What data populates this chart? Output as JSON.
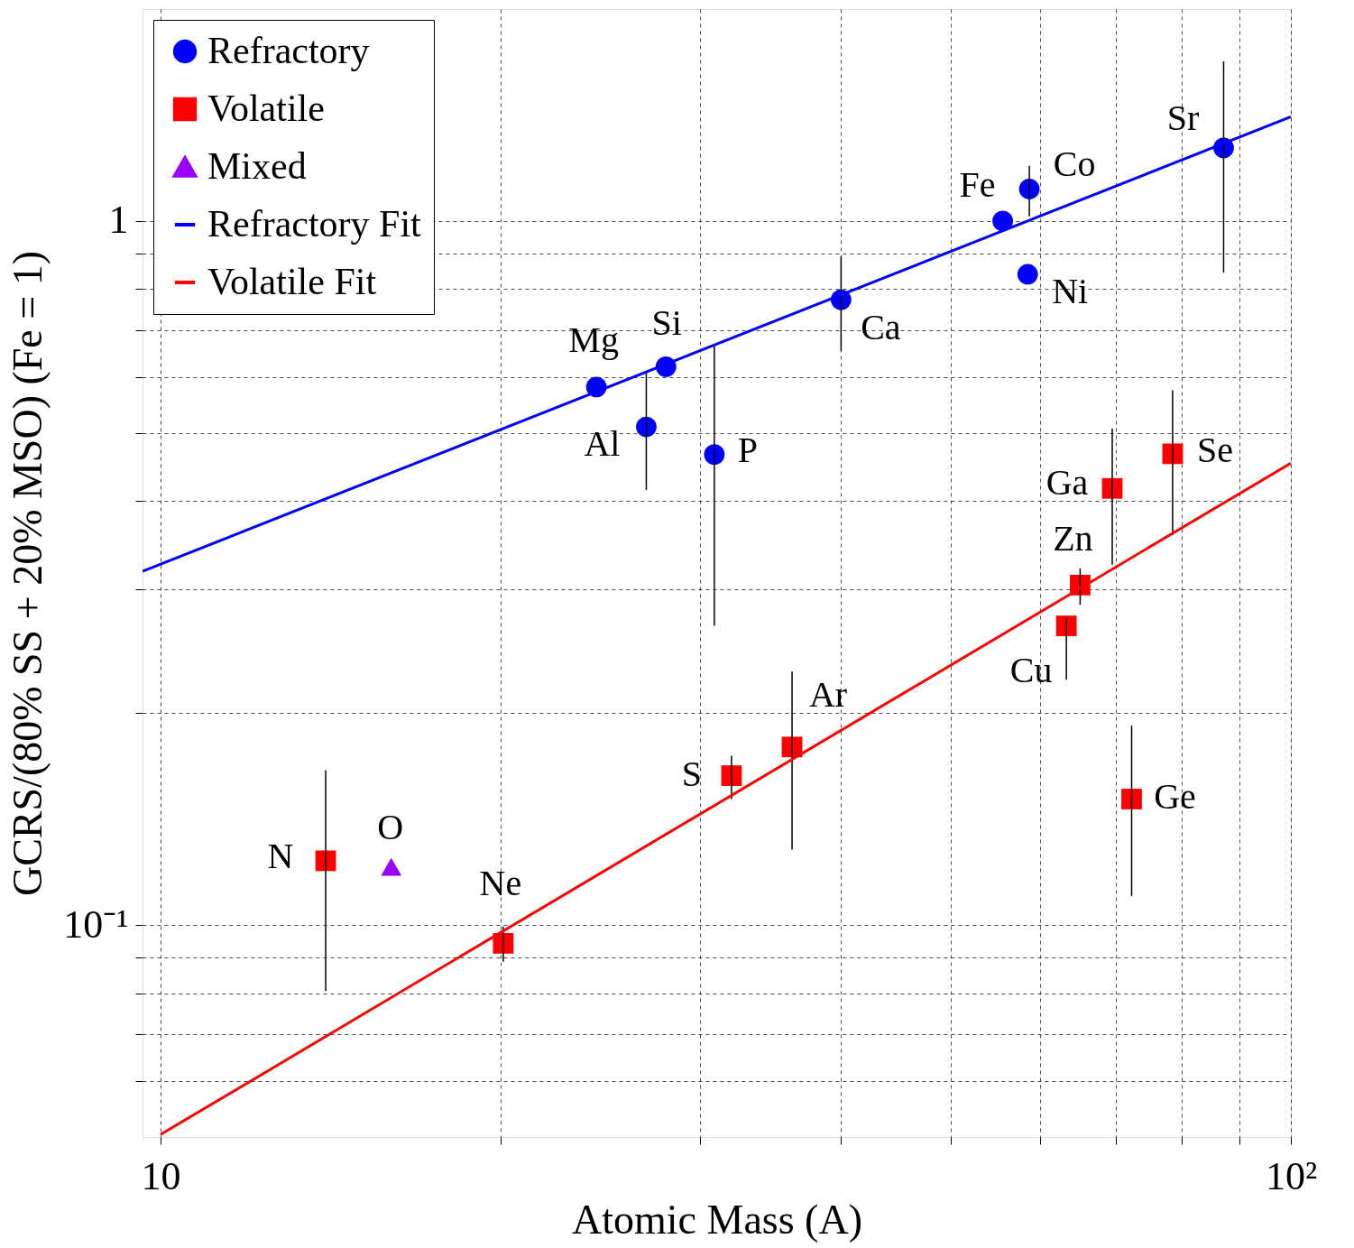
{
  "chart_data": {
    "type": "scatter",
    "xlabel": "Atomic Mass (A)",
    "ylabel": "GCRS/(80% SS + 20% MSO) (Fe = 1)",
    "log": "xy",
    "xlim": [
      9.64,
      100
    ],
    "ylim": [
      0.05,
      2
    ],
    "xticks": [
      10,
      {
        "value": 20,
        "label": null
      },
      {
        "value": 30,
        "label": null
      },
      {
        "value": 40,
        "label": null
      },
      {
        "value": 50,
        "label": null
      },
      {
        "value": 60,
        "label": null
      },
      {
        "value": 70,
        "label": null
      },
      {
        "value": 80,
        "label": null
      },
      {
        "value": 90,
        "label": null
      },
      {
        "value": 100,
        "label": "10²"
      }
    ],
    "yticks": [
      {
        "value": 0.06,
        "label": null
      },
      {
        "value": 0.07,
        "label": null
      },
      {
        "value": 0.08,
        "label": null
      },
      {
        "value": 0.09,
        "label": null
      },
      {
        "value": 0.1,
        "label": "10⁻¹"
      },
      {
        "value": 0.2,
        "label": null
      },
      {
        "value": 0.3,
        "label": null
      },
      {
        "value": 0.4,
        "label": null
      },
      {
        "value": 0.5,
        "label": null
      },
      {
        "value": 0.6,
        "label": null
      },
      {
        "value": 0.7,
        "label": null
      },
      {
        "value": 0.8,
        "label": null
      },
      {
        "value": 0.9,
        "label": null
      },
      1
    ],
    "grid": true,
    "legend": "top left",
    "series": [
      {
        "name": "Refractory",
        "type": "scatter",
        "marker": "circle",
        "color": "#0000ff",
        "x": [
          24.3,
          26.9,
          28.0,
          30.9,
          40.0,
          55.6,
          58.7,
          58.5,
          87.2
        ],
        "values": [
          0.581,
          0.51,
          0.621,
          0.466,
          0.773,
          1.0,
          1.11,
          0.84,
          1.27
        ],
        "errors": [
          null,
          [
            0.415,
            0.61
          ],
          null,
          [
            0.266,
            0.666
          ],
          [
            0.653,
            0.891
          ],
          null,
          [
            1.015,
            1.198
          ],
          null,
          [
            0.845,
            1.685
          ]
        ]
      },
      {
        "name": "Volatile",
        "type": "scatter",
        "marker": "square",
        "color": "#ff0000",
        "x": [
          14.0,
          20.1,
          32.0,
          36.2,
          63.3,
          65.1,
          69.5,
          72.3,
          78.6
        ],
        "values": [
          0.1234,
          0.0942,
          0.163,
          0.179,
          0.266,
          0.304,
          0.417,
          0.151,
          0.467
        ],
        "errors": [
          [
            0.0806,
            0.166
          ],
          [
            0.0887,
            0.0995
          ],
          [
            0.151,
            0.174
          ],
          [
            0.128,
            0.229
          ],
          [
            0.223,
            0.273
          ],
          [
            0.285,
            0.321
          ],
          [
            0.325,
            0.507
          ],
          [
            0.11,
            0.192
          ],
          [
            0.358,
            0.575
          ]
        ]
      },
      {
        "name": "Mixed",
        "type": "scatter",
        "marker": "triangle",
        "color": "#9900ff",
        "x": [
          16.0
        ],
        "values": [
          0.121
        ]
      },
      {
        "name": "Refractory Fit",
        "type": "line",
        "marker": "none",
        "line_style": "solid",
        "color": "#0000ff",
        "x": [
          9.64,
          100
        ],
        "values": [
          0.318,
          1.406
        ]
      },
      {
        "name": "Volatile Fit",
        "type": "line",
        "marker": "none",
        "line_style": "solid",
        "color": "#ff0000",
        "x": [
          10,
          100
        ],
        "values": [
          0.0504,
          0.453
        ]
      }
    ],
    "annotations": [
      {
        "text": "Mg",
        "x": 24.3,
        "y": 0.581
      },
      {
        "text": "Si",
        "x": 28.0,
        "y": 0.621
      },
      {
        "text": "Al",
        "x": 26.9,
        "y": 0.51
      },
      {
        "text": "P",
        "x": 30.9,
        "y": 0.466
      },
      {
        "text": "Ca",
        "x": 40.0,
        "y": 0.773
      },
      {
        "text": "Fe",
        "x": 55.6,
        "y": 1.0
      },
      {
        "text": "Co",
        "x": 58.7,
        "y": 1.11
      },
      {
        "text": "Ni",
        "x": 58.5,
        "y": 0.84
      },
      {
        "text": "Sr",
        "x": 87.2,
        "y": 1.27
      },
      {
        "text": "N",
        "x": 14.0,
        "y": 0.1234
      },
      {
        "text": "O",
        "x": 16.0,
        "y": 0.121
      },
      {
        "text": "Ne",
        "x": 20.1,
        "y": 0.0942
      },
      {
        "text": "S",
        "x": 32.0,
        "y": 0.163
      },
      {
        "text": "Ar",
        "x": 36.2,
        "y": 0.179
      },
      {
        "text": "Cu",
        "x": 63.3,
        "y": 0.266
      },
      {
        "text": "Zn",
        "x": 65.1,
        "y": 0.304
      },
      {
        "text": "Ga",
        "x": 69.5,
        "y": 0.417
      },
      {
        "text": "Ge",
        "x": 72.3,
        "y": 0.151
      },
      {
        "text": "Se",
        "x": 78.6,
        "y": 0.467
      }
    ]
  }
}
